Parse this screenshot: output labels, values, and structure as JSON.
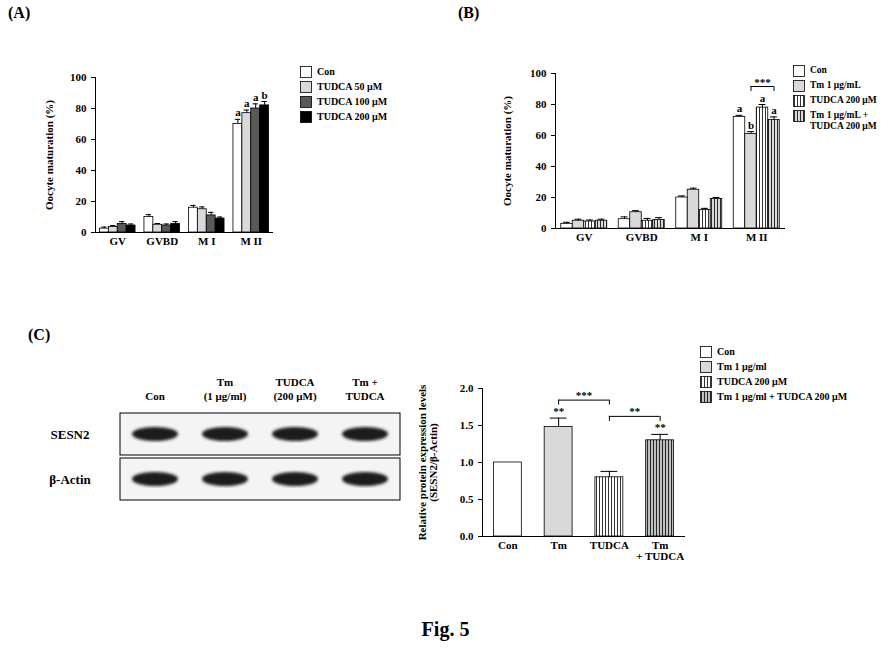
{
  "panel_labels": [
    "(A)",
    "(B)",
    "(C)"
  ],
  "caption": "Fig. 5",
  "blot": {
    "lanes": [
      "Con",
      "Tm\n(1 μg/ml)",
      "TUDCA\n(200 μM)",
      "Tm +\nTUDCA"
    ],
    "rows": [
      "SESN2",
      "β-Actin"
    ]
  },
  "chart_data": [
    {
      "type": "bar",
      "ylabel": "Oocyte maturation (%)",
      "categories": [
        "GV",
        "GVBD",
        "M I",
        "M II"
      ],
      "ylim": [
        0,
        100
      ],
      "yticks": [
        0,
        20,
        40,
        60,
        80,
        100
      ],
      "legend": "right",
      "series": [
        {
          "name": "Con",
          "color": "#ffffff",
          "values": [
            2.5,
            10,
            16,
            70
          ],
          "errors": [
            1,
            1.5,
            1.5,
            3
          ],
          "annotations": [
            null,
            null,
            null,
            "a"
          ]
        },
        {
          "name": "TUDCA 50 μM",
          "color": "#d9d9d9",
          "values": [
            3.5,
            5,
            15,
            77
          ],
          "errors": [
            1,
            0.8,
            1.5,
            2
          ],
          "annotations": [
            null,
            null,
            null,
            "a"
          ]
        },
        {
          "name": "TUDCA 100 μM",
          "color": "#595959",
          "values": [
            5.5,
            4.5,
            11,
            80
          ],
          "errors": [
            1.5,
            1,
            2,
            3
          ],
          "annotations": [
            null,
            null,
            null,
            "a"
          ]
        },
        {
          "name": "TUDCA 200 μM",
          "color": "#000000",
          "values": [
            4.5,
            5.5,
            9,
            82
          ],
          "errors": [
            1,
            1.5,
            1,
            2.5
          ],
          "annotations": [
            null,
            null,
            null,
            "b"
          ]
        }
      ]
    },
    {
      "type": "bar",
      "ylabel": "Oocyte maturation (%)",
      "categories": [
        "GV",
        "GVBD",
        "M I",
        "M II"
      ],
      "ylim": [
        0,
        100
      ],
      "yticks": [
        0,
        20,
        40,
        60,
        80,
        100
      ],
      "legend": "right",
      "series": [
        {
          "name": "Con",
          "color": "#ffffff",
          "values": [
            3,
            6,
            20,
            72
          ],
          "errors": [
            1,
            1.5,
            1,
            1
          ],
          "annotations": [
            null,
            null,
            null,
            "a"
          ]
        },
        {
          "name": "Tm 1 μg/mL",
          "color": "#d9d9d9",
          "values": [
            5,
            10.5,
            25,
            61
          ],
          "errors": [
            1,
            1,
            1,
            1.5
          ],
          "annotations": [
            null,
            null,
            null,
            "b"
          ]
        },
        {
          "name": "TUDCA 200 μM",
          "color": "#ffffff",
          "values": [
            4.5,
            5,
            12,
            78
          ],
          "errors": [
            1,
            1.5,
            1,
            2
          ],
          "annotations": [
            null,
            null,
            null,
            "a"
          ]
        },
        {
          "name": "Tm 1 μg/mL + TUDCA 200 μM",
          "color": "#d9d9d9",
          "values": [
            5,
            5.5,
            19,
            70
          ],
          "errors": [
            1,
            1.5,
            1,
            2
          ],
          "annotations": [
            null,
            null,
            null,
            "a"
          ]
        }
      ],
      "brackets": [
        {
          "category": "M II",
          "from": "Tm 1 μg/mL",
          "to": "Tm 1 μg/mL + TUDCA 200 μM",
          "label": "***"
        }
      ]
    },
    {
      "type": "bar",
      "stacked": true,
      "ylabel": "Relative protein expression levels\n(SESN2/β-Actin)",
      "categories": [
        "Con",
        "Tm",
        "TUDCA",
        "Tm\n+ TUDCA"
      ],
      "ylim": [
        0,
        2
      ],
      "yticks": [
        {
          "value": 0,
          "label": "0.0"
        },
        {
          "value": 0.5,
          "label": "0.5"
        },
        {
          "value": 1,
          "label": "1.0"
        },
        {
          "value": 1.5,
          "label": "1.5"
        },
        {
          "value": 2,
          "label": "2.0"
        }
      ],
      "legend": "right",
      "series": [
        {
          "name": "Con",
          "color": "#ffffff",
          "values": [
            1,
            null,
            null,
            null
          ],
          "errors": [
            null,
            null,
            null,
            null
          ]
        },
        {
          "name": "Tm 1 μg/ml",
          "color": "#d9d9d9",
          "values": [
            null,
            1.48,
            null,
            null
          ],
          "errors": [
            null,
            0.12,
            null,
            null
          ],
          "annotations": [
            null,
            "**",
            null,
            null
          ]
        },
        {
          "name": "TUDCA 200 μM",
          "color": "#ffffff",
          "values": [
            null,
            null,
            0.8,
            null
          ],
          "errors": [
            null,
            null,
            0.08,
            null
          ]
        },
        {
          "name": "Tm 1 μg/ml + TUDCA 200 μM",
          "color": "#bfbfbf",
          "values": [
            null,
            null,
            null,
            1.3
          ],
          "errors": [
            null,
            null,
            null,
            0.08
          ],
          "annotations": [
            null,
            null,
            null,
            "**"
          ]
        }
      ],
      "brackets": [
        {
          "from": "Tm 1 μg/ml",
          "to": "TUDCA 200 μM",
          "label": "***"
        },
        {
          "from": "TUDCA 200 μM",
          "to": "Tm 1 μg/ml + TUDCA 200 μM",
          "label": "**"
        }
      ]
    }
  ]
}
